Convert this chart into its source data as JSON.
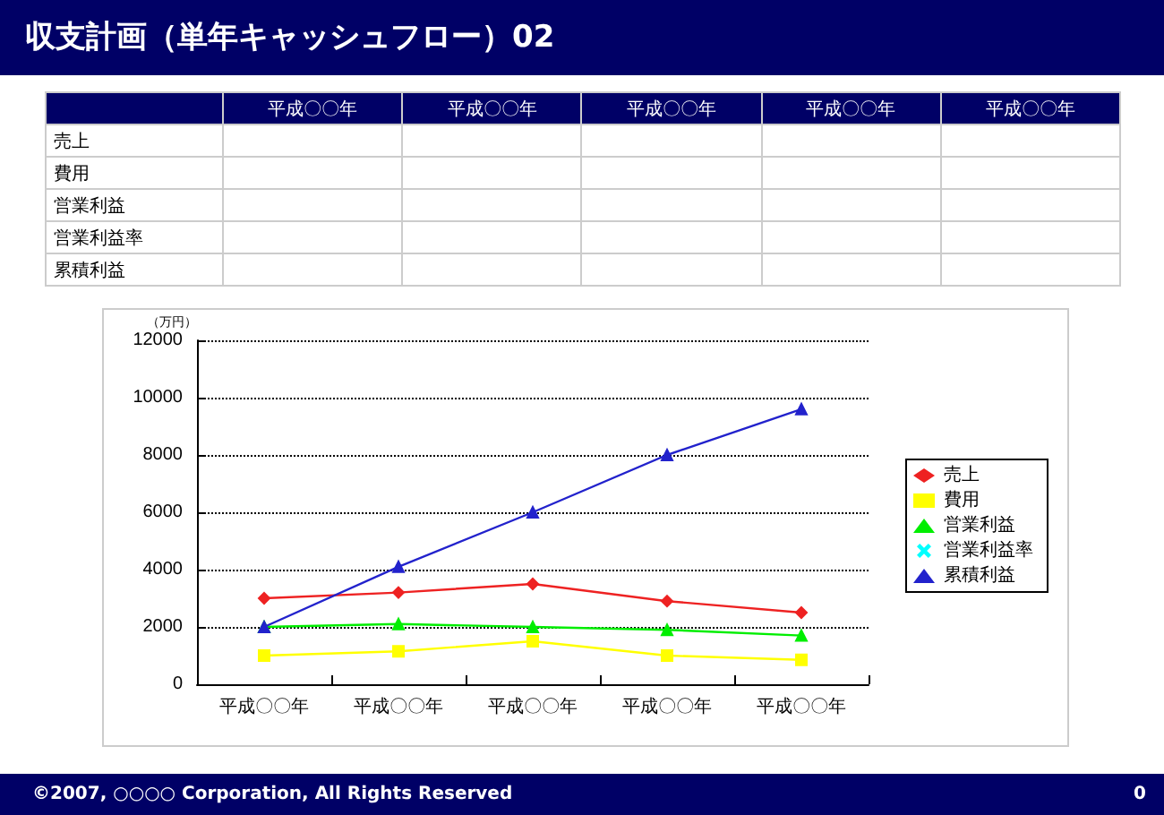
{
  "chart_data": {
    "type": "line",
    "title": "収支計画（単年キャッシュフロー）02",
    "ylabel": "（万円）",
    "categories": [
      "平成〇〇年",
      "平成〇〇年",
      "平成〇〇年",
      "平成〇〇年",
      "平成〇〇年"
    ],
    "series": [
      {
        "name": "売上",
        "color": "#ee2222",
        "marker": "diamond",
        "values": [
          3000,
          3200,
          3500,
          2900,
          2500
        ]
      },
      {
        "name": "費用",
        "color": "#ffff00",
        "marker": "square",
        "values": [
          1000,
          1150,
          1500,
          1000,
          850
        ]
      },
      {
        "name": "営業利益",
        "color": "#00ee00",
        "marker": "triangle",
        "values": [
          2000,
          2100,
          2000,
          1900,
          1700
        ]
      },
      {
        "name": "営業利益率",
        "color": "#00ffff",
        "marker": "cross",
        "values": [
          null,
          null,
          null,
          null,
          null
        ]
      },
      {
        "name": "累積利益",
        "color": "#2222cc",
        "marker": "triangle",
        "values": [
          2000,
          4100,
          6000,
          8000,
          9600
        ]
      }
    ],
    "ylim": [
      0,
      12000
    ],
    "yticks": [
      0,
      2000,
      4000,
      6000,
      8000,
      10000,
      12000
    ],
    "grid": "y",
    "legend": "right",
    "line_style": "solid",
    "annotations": [
      "©2007, ○○○○ Corporation, All Rights Reserved",
      "0"
    ]
  }
}
